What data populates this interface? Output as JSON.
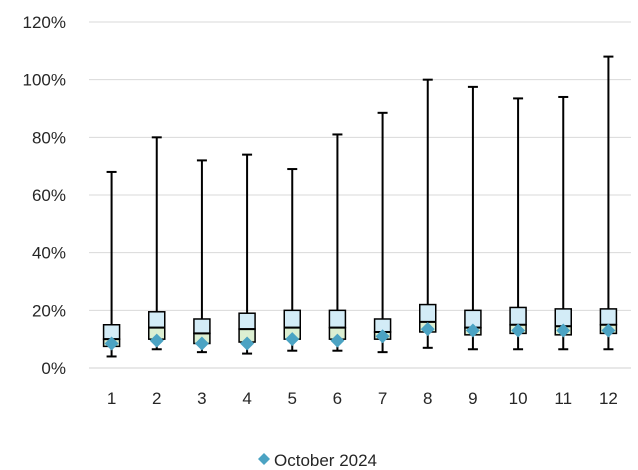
{
  "chart_data": {
    "type": "box",
    "title": "",
    "xlabel": "",
    "ylabel": "",
    "categories": [
      "1",
      "2",
      "3",
      "4",
      "5",
      "6",
      "7",
      "8",
      "9",
      "10",
      "11",
      "12"
    ],
    "ylim": [
      0,
      120
    ],
    "y_ticks": [
      0,
      20,
      40,
      60,
      80,
      100,
      120
    ],
    "y_tick_labels": [
      "0%",
      "20%",
      "40%",
      "60%",
      "80%",
      "100%",
      "120%"
    ],
    "grid": "horizontal",
    "boxes": [
      {
        "min": 4,
        "q1": 7.5,
        "median": 10,
        "q3": 15,
        "max": 68
      },
      {
        "min": 6.5,
        "q1": 10,
        "median": 14,
        "q3": 19.5,
        "max": 80
      },
      {
        "min": 5.5,
        "q1": 8.5,
        "median": 12,
        "q3": 17,
        "max": 72
      },
      {
        "min": 5,
        "q1": 9,
        "median": 13.5,
        "q3": 19,
        "max": 74
      },
      {
        "min": 6,
        "q1": 10,
        "median": 14,
        "q3": 20,
        "max": 69
      },
      {
        "min": 6,
        "q1": 10,
        "median": 14,
        "q3": 20,
        "max": 81
      },
      {
        "min": 5.5,
        "q1": 10,
        "median": 12.5,
        "q3": 17,
        "max": 88.5
      },
      {
        "min": 7,
        "q1": 12.5,
        "median": 16,
        "q3": 22,
        "max": 100
      },
      {
        "min": 6.5,
        "q1": 11.5,
        "median": 14,
        "q3": 20,
        "max": 97.5
      },
      {
        "min": 6.5,
        "q1": 12,
        "median": 15,
        "q3": 21,
        "max": 93.5
      },
      {
        "min": 6.5,
        "q1": 11.5,
        "median": 14.5,
        "q3": 20.5,
        "max": 94
      },
      {
        "min": 6.5,
        "q1": 12,
        "median": 15,
        "q3": 20.5,
        "max": 108
      }
    ],
    "series": [
      {
        "name": "October 2024",
        "marker": "diamond",
        "values": [
          8.5,
          9.5,
          8.5,
          8.5,
          10,
          9.5,
          11,
          13.5,
          13,
          13,
          13,
          13
        ]
      }
    ],
    "legend": "bottom-center",
    "colors": {
      "box_upper": "#d3ecf7",
      "box_lower": "#dcefd2",
      "box_stroke": "#000000",
      "marker": "#4ba3c3",
      "grid": "#d9d9d9",
      "text": "#262626"
    }
  }
}
